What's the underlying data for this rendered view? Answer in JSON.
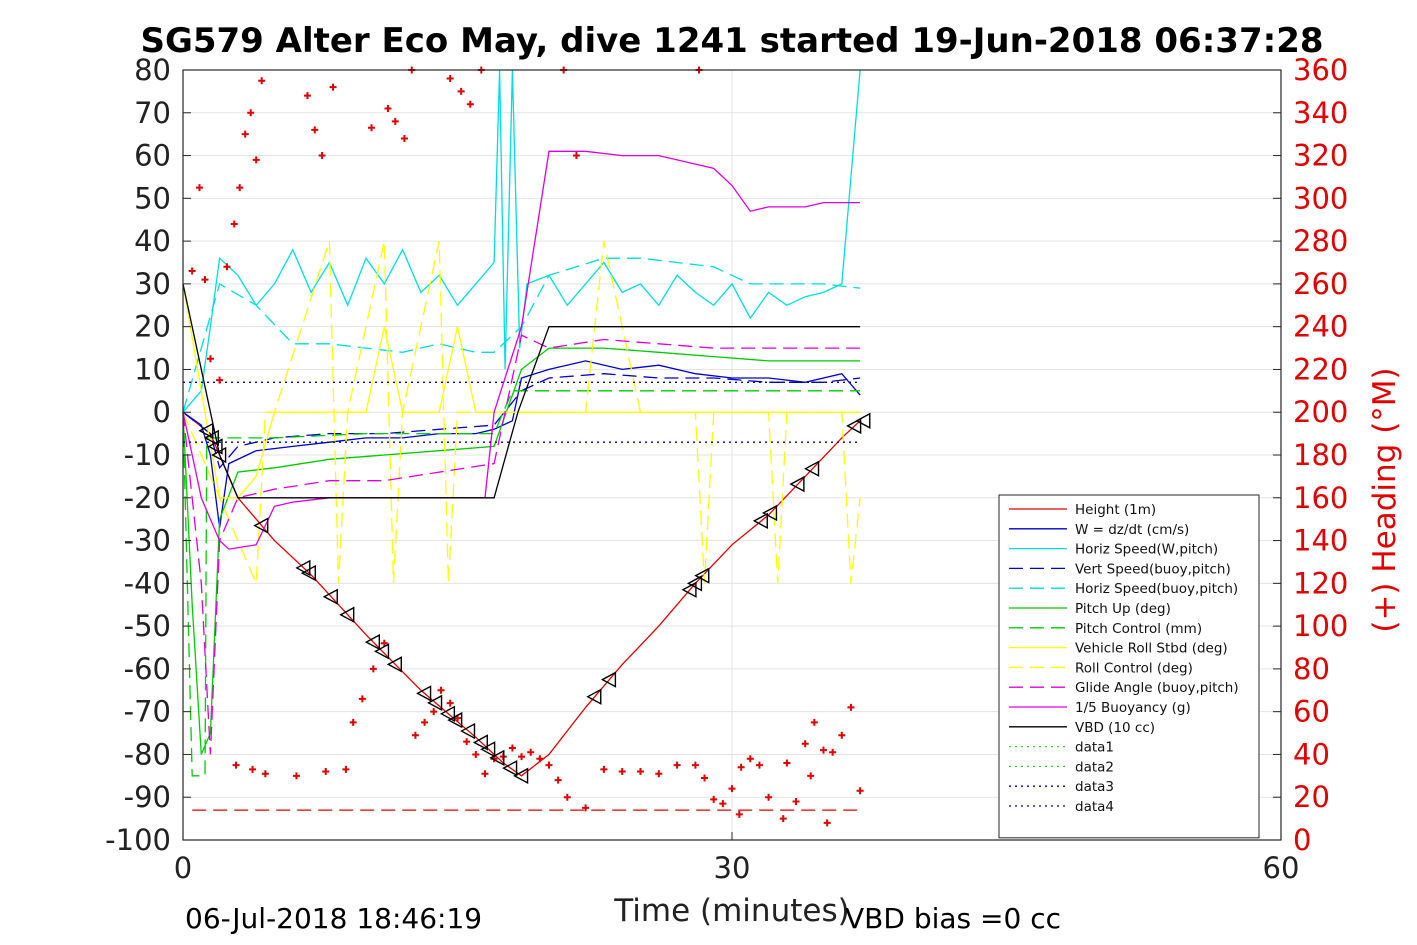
{
  "chart_data": {
    "type": "line",
    "title": "SG579 Alter Eco May, dive 1241 started 19-Jun-2018 06:37:28",
    "xlabel": "Time (minutes)",
    "ylabel_right": "(+) Heading (°M)",
    "xlim": [
      0,
      60
    ],
    "ylim": [
      -100,
      80
    ],
    "ylim_right": [
      0,
      360
    ],
    "x_ticks": [
      0,
      30,
      60
    ],
    "y_ticks": [
      80,
      70,
      60,
      50,
      40,
      30,
      20,
      10,
      0,
      -10,
      -20,
      -30,
      -40,
      -50,
      -60,
      -70,
      -80,
      -90,
      -100
    ],
    "y_ticks_right": [
      360,
      340,
      320,
      300,
      280,
      260,
      240,
      220,
      200,
      180,
      160,
      140,
      120,
      100,
      80,
      60,
      40,
      20,
      0
    ],
    "grid": true,
    "legend_position": "bottom-right",
    "footer_left": "06-Jul-2018 18:46:19",
    "footer_right": "VBD bias =0 cc",
    "series": [
      {
        "name": "Height (1m)",
        "color": "#e00000",
        "style": "solid",
        "x": [
          0,
          1.5,
          3,
          5,
          7,
          10,
          13,
          16,
          17.5,
          18.5,
          20,
          22,
          24,
          26,
          28,
          30,
          32,
          34,
          36,
          37
        ],
        "y": [
          0,
          -5,
          -20,
          -30,
          -38,
          -52,
          -65,
          -76,
          -82,
          -85,
          -80,
          -69,
          -59,
          -50,
          -40,
          -31,
          -24,
          -15,
          -6,
          -2
        ]
      },
      {
        "name": "W = dz/dt (cm/s)",
        "color": "#0000cc",
        "style": "solid",
        "x": [
          0,
          1,
          1.5,
          2,
          2.5,
          4,
          6,
          8,
          10,
          12,
          14,
          16,
          17,
          18,
          18.5,
          20,
          22,
          24,
          26,
          28,
          30,
          32,
          34,
          36,
          37
        ],
        "y": [
          0,
          -3,
          -10,
          -27,
          -12,
          -9,
          -8,
          -7,
          -6,
          -6,
          -5,
          -5,
          -4,
          -2,
          8,
          10,
          12,
          10,
          11,
          9,
          8,
          8,
          7,
          9,
          4
        ]
      },
      {
        "name": "Horiz Speed(W,pitch)",
        "color": "#00dddd",
        "style": "solid",
        "x": [
          0,
          1,
          1.5,
          2,
          3,
          4,
          5,
          6,
          7,
          8,
          9,
          10,
          11,
          12,
          13,
          14,
          15,
          16,
          17,
          17.3,
          17.6,
          18,
          18.4,
          18.8,
          20,
          21,
          22,
          23,
          24,
          25,
          26,
          27,
          28,
          29,
          30,
          31,
          32,
          33,
          34,
          35,
          36,
          37
        ],
        "y": [
          0,
          5,
          20,
          36,
          32,
          25,
          30,
          38,
          28,
          35,
          25,
          36,
          30,
          38,
          28,
          32,
          25,
          30,
          35,
          80,
          10,
          80,
          15,
          30,
          32,
          25,
          30,
          35,
          28,
          30,
          25,
          32,
          28,
          25,
          30,
          22,
          28,
          25,
          27,
          28,
          30,
          80
        ]
      },
      {
        "name": "Vert Speed(buoy,pitch)",
        "color": "#0000cc",
        "style": "dashed",
        "x": [
          0,
          1.5,
          2,
          3,
          5,
          8,
          11,
          14,
          17,
          18.5,
          20,
          23,
          26,
          29,
          32,
          35,
          37
        ],
        "y": [
          0,
          -5,
          -13,
          -8,
          -6,
          -5,
          -5,
          -4,
          -3,
          5,
          8,
          9,
          8,
          8,
          7,
          7,
          8
        ]
      },
      {
        "name": "Horiz Speed(buoy,pitch)",
        "color": "#00dddd",
        "style": "dashed",
        "x": [
          0,
          2,
          4,
          6,
          8,
          10,
          12,
          14,
          16,
          17,
          18.5,
          20,
          23,
          25,
          27,
          29,
          31,
          33,
          35,
          37
        ],
        "y": [
          0,
          30,
          25,
          16,
          16,
          15,
          14,
          16,
          14,
          14,
          20,
          32,
          36,
          36,
          35,
          34,
          30,
          30,
          30,
          29
        ]
      },
      {
        "name": "Pitch Up (deg)",
        "color": "#00cc00",
        "style": "solid",
        "x": [
          0,
          0.5,
          1,
          1.5,
          2,
          3,
          5,
          8,
          11,
          14,
          17,
          18.5,
          20,
          23,
          26,
          29,
          32,
          35,
          37
        ],
        "y": [
          0,
          -45,
          -80,
          -75,
          -25,
          -14,
          -13,
          -11,
          -10,
          -9,
          -8,
          10,
          15,
          15,
          14,
          13,
          12,
          12,
          12
        ]
      },
      {
        "name": "Pitch Control (mm)",
        "color": "#00cc00",
        "style": "dashed",
        "x": [
          0,
          0.5,
          1.2,
          1.3,
          2,
          5,
          10,
          15,
          17,
          18,
          20,
          25,
          30,
          37
        ],
        "y": [
          0,
          -85,
          -85,
          -6,
          -6,
          -6,
          -5,
          -5,
          -5,
          5,
          5,
          5,
          5,
          5
        ]
      },
      {
        "name": "Vehicle Roll Stbd (deg)",
        "color": "#ffff00",
        "style": "solid",
        "x": [
          0,
          1,
          2,
          3,
          4,
          5,
          6,
          8,
          10,
          11,
          12,
          14,
          15,
          16,
          17,
          18,
          19,
          20,
          21,
          22,
          23,
          24,
          26,
          28,
          29,
          30,
          31,
          32,
          33,
          34,
          35,
          36,
          37
        ],
        "y": [
          30,
          5,
          -20,
          -20,
          -15,
          0,
          0,
          0,
          0,
          20,
          0,
          0,
          20,
          0,
          0,
          0,
          0,
          0,
          0,
          0,
          0,
          0,
          0,
          0,
          0,
          0,
          0,
          0,
          0,
          0,
          0,
          0,
          0
        ]
      },
      {
        "name": "Roll Control (deg)",
        "color": "#ffff00",
        "style": "dashed",
        "x": [
          0,
          2,
          4,
          4.5,
          5,
          8,
          8.5,
          9,
          11,
          11.5,
          12,
          14,
          14.5,
          15,
          17,
          20,
          22,
          23,
          25,
          28,
          28.5,
          29,
          32,
          32.5,
          33,
          36,
          36.5,
          37
        ],
        "y": [
          0,
          -20,
          -40,
          0,
          0,
          40,
          -40,
          0,
          40,
          -40,
          0,
          40,
          -40,
          0,
          0,
          0,
          0,
          40,
          0,
          0,
          -40,
          0,
          0,
          -40,
          0,
          0,
          -40,
          -20
        ]
      },
      {
        "name": "Glide Angle (buoy,pitch)",
        "color": "#dd00dd",
        "style": "dashed",
        "x": [
          0,
          1,
          1.5,
          2,
          3,
          5,
          8,
          11,
          14,
          17,
          18.5,
          20,
          23,
          26,
          29,
          32,
          35,
          37
        ],
        "y": [
          0,
          -40,
          -80,
          -30,
          -20,
          -18,
          -16,
          -16,
          -14,
          -12,
          18,
          15,
          17,
          16,
          15,
          15,
          15,
          15
        ]
      },
      {
        "name": "1/5 Buoyancy (g)",
        "color": "#dd00dd",
        "style": "solid",
        "x": [
          0,
          0.5,
          1,
          1.5,
          2,
          2.5,
          4,
          5,
          6,
          8,
          10,
          15,
          16.5,
          17,
          18.5,
          20,
          22,
          24,
          26,
          28,
          29,
          30,
          31,
          32,
          34,
          35,
          37
        ],
        "y": [
          0,
          -10,
          -20,
          -25,
          -30,
          -32,
          -31,
          -22,
          -21,
          -20,
          -20,
          -20,
          -20,
          0,
          20,
          61,
          61,
          60,
          60,
          58,
          57,
          53,
          47,
          48,
          48,
          49,
          49
        ]
      },
      {
        "name": "VBD (10 cc)",
        "color": "#000000",
        "style": "solid",
        "x": [
          0,
          1,
          2,
          3,
          5,
          10,
          15,
          17,
          18.3,
          20,
          25,
          30,
          35,
          37
        ],
        "y": [
          30,
          10,
          -10,
          -20,
          -20,
          -20,
          -20,
          -20,
          0,
          20,
          20,
          20,
          20,
          20
        ]
      },
      {
        "name": "data1",
        "color": "#33cc33",
        "style": "dotted",
        "x": [],
        "y": []
      },
      {
        "name": "data2",
        "color": "#33cc33",
        "style": "dotted",
        "x": [],
        "y": []
      },
      {
        "name": "data3",
        "color": "#000088",
        "style": "dotted",
        "x": [
          0,
          37
        ],
        "y": [
          7,
          7
        ]
      },
      {
        "name": "data4",
        "color": "#000088",
        "style": "dotted",
        "x": [
          0,
          37
        ],
        "y": [
          -7,
          -7
        ]
      }
    ],
    "extra_lines": [
      {
        "color": "#e00000",
        "style": "dashed",
        "x": [
          0.5,
          37
        ],
        "y": [
          -93,
          -93
        ]
      }
    ],
    "heading_points": {
      "color": "#e00000",
      "marker": "+",
      "x": [
        0.5,
        0.9,
        1.2,
        1.5,
        2,
        2.4,
        2.8,
        3.1,
        3.4,
        3.7,
        4.0,
        4.3,
        6.8,
        7.2,
        7.6,
        8.2,
        10.3,
        11.2,
        11.6,
        12.1,
        12.5,
        14.6,
        15.2,
        15.7,
        16.3,
        2.9,
        3.8,
        4.5,
        6.2,
        7.8,
        8.9,
        9.3,
        9.8,
        10.4,
        11.0,
        12.7,
        13.2,
        13.7,
        14.1,
        14.6,
        15.0,
        15.5,
        16.0,
        16.5,
        17.0,
        17.5,
        18.0,
        18.5,
        19.0,
        19.5,
        20.0,
        20.5,
        21.0,
        22.0,
        23.0,
        24.0,
        25.0,
        26.0,
        27.0,
        28.0,
        28.5,
        29.0,
        29.5,
        30.0,
        30.5,
        31.0,
        31.5,
        32.0,
        33.0,
        34.0,
        34.5,
        35.0,
        35.5,
        36.0,
        36.5,
        37.0,
        20.8,
        21.5,
        28.2,
        30.4,
        32.8,
        33.5,
        34.3,
        35.2
      ],
      "heading": [
        266,
        305,
        262,
        225,
        215,
        268,
        288,
        305,
        330,
        340,
        318,
        355,
        348,
        332,
        320,
        352,
        333,
        342,
        336,
        328,
        370,
        356,
        350,
        344,
        362,
        35,
        33,
        31,
        30,
        32,
        33,
        55,
        66,
        80,
        92,
        49,
        55,
        60,
        70,
        64,
        57,
        46,
        40,
        31,
        38,
        39,
        43,
        39,
        41,
        38,
        35,
        28,
        20,
        15,
        33,
        32,
        32,
        31,
        35,
        35,
        29,
        19,
        17,
        24,
        34,
        38,
        35,
        20,
        36,
        45,
        55,
        42,
        41,
        49,
        62,
        23,
        372,
        320,
        372,
        12,
        10,
        18,
        30,
        8
      ],
      "note_values_in_degrees": true
    },
    "triangle_markers_on_height": {
      "color": "#000000",
      "x": [
        1.3,
        1.6,
        1.8,
        2.0,
        4.3,
        6.6,
        6.9,
        8.1,
        9.0,
        10.4,
        10.9,
        11.6,
        13.2,
        13.8,
        14.5,
        14.9,
        15.6,
        16.3,
        16.7,
        17.2,
        17.9,
        18.5,
        22.5,
        23.3,
        27.7,
        28.0,
        28.4,
        31.6,
        32.1,
        33.6,
        34.4,
        36.7,
        37.2
      ]
    }
  }
}
